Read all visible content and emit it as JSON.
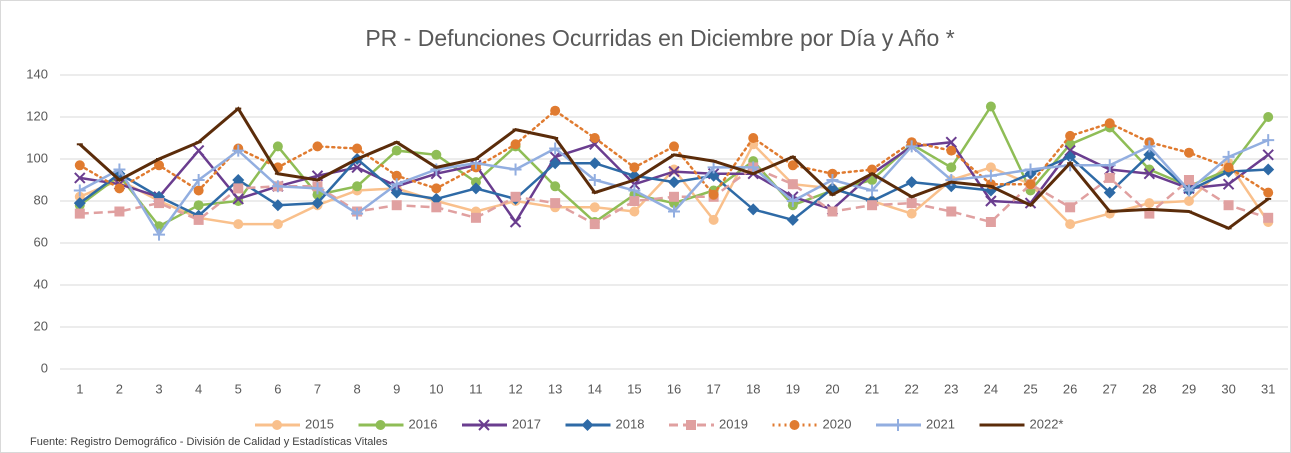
{
  "chart_data": {
    "type": "line",
    "title": "PR - Defunciones Ocurridas en Diciembre por Día y Año *",
    "source": "Fuente: Registro Demográfico - División de Calidad y Estadísticas Vitales",
    "categories": [
      "1",
      "2",
      "3",
      "4",
      "5",
      "6",
      "7",
      "8",
      "9",
      "10",
      "11",
      "12",
      "13",
      "14",
      "15",
      "16",
      "17",
      "18",
      "19",
      "20",
      "21",
      "22",
      "23",
      "24",
      "25",
      "26",
      "27",
      "28",
      "29",
      "30",
      "31"
    ],
    "ylim": [
      0,
      140
    ],
    "yticks": [
      0,
      20,
      40,
      60,
      80,
      100,
      120,
      140
    ],
    "grid": true,
    "legend": "bottom",
    "series": [
      {
        "name": "2015",
        "color": "#f9c08c",
        "marker": "circle",
        "dash": "solid",
        "values": [
          82,
          90,
          80,
          72,
          69,
          69,
          78,
          85,
          86,
          80,
          75,
          80,
          77,
          77,
          75,
          95,
          71,
          107,
          88,
          86,
          80,
          74,
          90,
          96,
          88,
          69,
          74,
          79,
          80,
          98,
          70
        ]
      },
      {
        "name": "2016",
        "color": "#8fbd56",
        "marker": "circle",
        "dash": "solid",
        "values": [
          78,
          92,
          68,
          78,
          80,
          106,
          83,
          87,
          104,
          102,
          89,
          106,
          87,
          70,
          83,
          79,
          85,
          99,
          78,
          85,
          90,
          107,
          96,
          125,
          85,
          107,
          115,
          95,
          87,
          95,
          120
        ]
      },
      {
        "name": "2017",
        "color": "#6a3d8f",
        "marker": "x",
        "dash": "solid",
        "values": [
          91,
          88,
          82,
          104,
          81,
          87,
          92,
          96,
          87,
          93,
          97,
          70,
          101,
          107,
          88,
          94,
          93,
          93,
          82,
          76,
          93,
          106,
          108,
          80,
          79,
          104,
          95,
          93,
          86,
          88,
          102
        ]
      },
      {
        "name": "2018",
        "color": "#2e6aa6",
        "marker": "diamond",
        "dash": "solid",
        "values": [
          79,
          93,
          82,
          73,
          90,
          78,
          79,
          100,
          84,
          81,
          86,
          81,
          98,
          98,
          92,
          89,
          92,
          76,
          71,
          86,
          80,
          89,
          87,
          85,
          93,
          101,
          84,
          102,
          85,
          94,
          95
        ]
      },
      {
        "name": "2019",
        "color": "#e0a0a0",
        "marker": "square",
        "dash": "dashed",
        "values": [
          74,
          75,
          79,
          71,
          86,
          87,
          87,
          75,
          78,
          77,
          72,
          82,
          79,
          69,
          80,
          82,
          82,
          96,
          88,
          75,
          78,
          79,
          75,
          70,
          88,
          77,
          91,
          74,
          90,
          78,
          72
        ]
      },
      {
        "name": "2020",
        "color": "#e07b30",
        "marker": "circle",
        "dash": "dotted",
        "values": [
          97,
          86,
          97,
          85,
          105,
          96,
          106,
          105,
          92,
          86,
          96,
          107,
          123,
          110,
          96,
          106,
          83,
          110,
          97,
          93,
          95,
          108,
          104,
          88,
          88,
          111,
          117,
          108,
          103,
          96,
          84
        ]
      },
      {
        "name": "2021",
        "color": "#92aee0",
        "marker": "plus",
        "dash": "solid",
        "values": [
          85,
          95,
          64,
          90,
          104,
          87,
          86,
          74,
          88,
          95,
          98,
          95,
          105,
          90,
          85,
          75,
          96,
          96,
          80,
          90,
          85,
          106,
          90,
          92,
          95,
          97,
          97,
          106,
          85,
          101,
          109
        ]
      },
      {
        "name": "2022*",
        "color": "#5b2c0a",
        "marker": "none",
        "dash": "solid",
        "values": [
          107,
          90,
          100,
          108,
          124,
          93,
          90,
          100,
          108,
          96,
          100,
          114,
          110,
          84,
          90,
          102,
          99,
          93,
          101,
          83,
          93,
          82,
          89,
          87,
          78,
          98,
          75,
          76,
          75,
          67,
          81
        ]
      }
    ]
  }
}
